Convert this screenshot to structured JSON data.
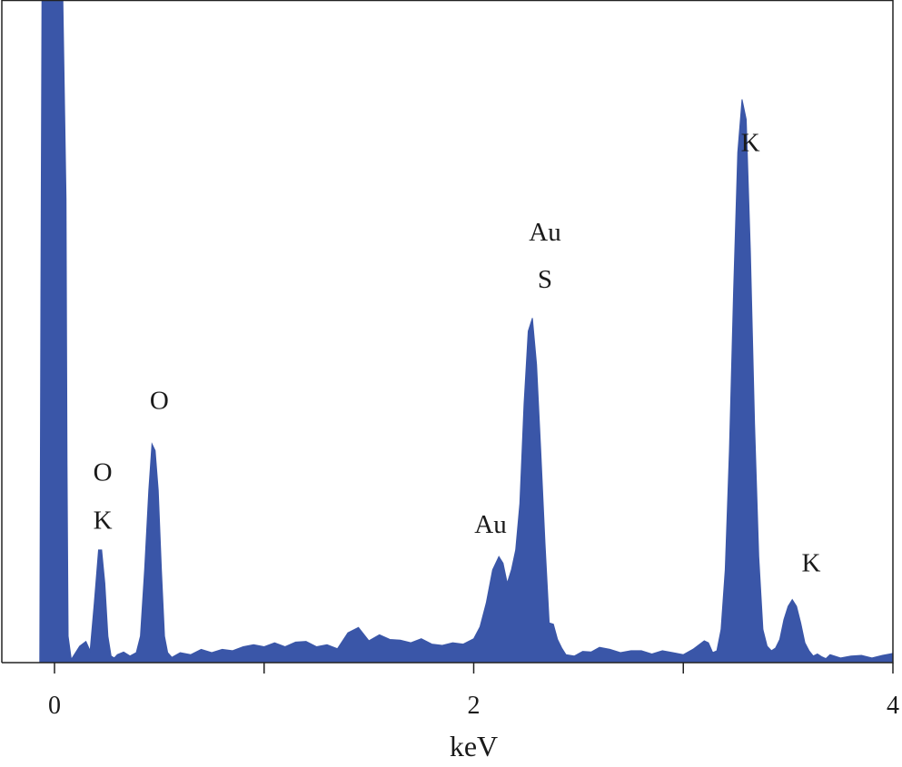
{
  "chart_data": {
    "type": "area",
    "title": "",
    "xlabel": "keV",
    "ylabel": "",
    "xlim": [
      -0.13,
      4.0
    ],
    "ylim": [
      0,
      100
    ],
    "grid": false,
    "legend": "none",
    "fill_color": "#3a56a8",
    "x_ticks_labeled": [
      {
        "value": 0,
        "label": "0"
      },
      {
        "value": 2,
        "label": "2"
      },
      {
        "value": 4,
        "label": "4"
      }
    ],
    "x_ticks_minor": [
      1,
      3
    ],
    "series": [
      {
        "x": [
          -0.07,
          -0.065,
          -0.06,
          -0.055,
          0.04,
          0.055,
          0.06,
          0.065,
          0.08,
          0.12,
          0.15,
          0.17,
          0.19,
          0.21,
          0.225,
          0.24,
          0.255,
          0.27,
          0.285,
          0.3,
          0.33,
          0.36,
          0.39,
          0.41,
          0.43,
          0.45,
          0.465,
          0.48,
          0.495,
          0.51,
          0.525,
          0.54,
          0.56,
          0.6,
          0.65,
          0.7,
          0.75,
          0.8,
          0.85,
          0.9,
          0.95,
          1.0,
          1.05,
          1.1,
          1.15,
          1.2,
          1.25,
          1.3,
          1.35,
          1.4,
          1.45,
          1.5,
          1.55,
          1.6,
          1.65,
          1.7,
          1.75,
          1.8,
          1.85,
          1.9,
          1.95,
          2.0,
          2.03,
          2.06,
          2.09,
          2.12,
          2.14,
          2.16,
          2.18,
          2.2,
          2.22,
          2.24,
          2.26,
          2.28,
          2.3,
          2.32,
          2.34,
          2.36,
          2.38,
          2.4,
          2.42,
          2.44,
          2.48,
          2.52,
          2.56,
          2.6,
          2.65,
          2.7,
          2.75,
          2.8,
          2.85,
          2.9,
          2.95,
          3.0,
          3.05,
          3.1,
          3.12,
          3.14,
          3.16,
          3.18,
          3.2,
          3.22,
          3.24,
          3.26,
          3.28,
          3.3,
          3.32,
          3.34,
          3.36,
          3.38,
          3.4,
          3.42,
          3.44,
          3.46,
          3.48,
          3.5,
          3.52,
          3.54,
          3.56,
          3.58,
          3.6,
          3.62,
          3.64,
          3.66,
          3.68,
          3.7,
          3.75,
          3.8,
          3.85,
          3.9,
          3.95,
          4.0
        ],
        "y": [
          0,
          55,
          100,
          100,
          100,
          70,
          30,
          4,
          0.5,
          2.5,
          3.2,
          1.8,
          9,
          17,
          17,
          12,
          4,
          1,
          0.7,
          1.2,
          1.6,
          1,
          1.5,
          4,
          14,
          26,
          33,
          32,
          26,
          14,
          4,
          1.5,
          0.8,
          1.5,
          1.2,
          2,
          1.5,
          2,
          1.8,
          2.4,
          2.7,
          2.4,
          3,
          2.4,
          3.1,
          3.2,
          2.4,
          2.7,
          2.1,
          4.5,
          5.3,
          3.3,
          4.2,
          3.5,
          3.4,
          3,
          3.6,
          2.8,
          2.6,
          3,
          2.8,
          3.6,
          5.4,
          9,
          14,
          16,
          15,
          12,
          14,
          17,
          24,
          39,
          50,
          52,
          45,
          32,
          18,
          6,
          5.8,
          3.5,
          2.2,
          1.2,
          1,
          1.7,
          1.6,
          2.3,
          2,
          1.5,
          1.8,
          1.8,
          1.3,
          1.8,
          1.5,
          1.2,
          2.1,
          3.3,
          3,
          1.5,
          1.8,
          5,
          14,
          32,
          56,
          77,
          85,
          82,
          62,
          36,
          16,
          5,
          2.5,
          1.8,
          2.2,
          3.5,
          6.5,
          8.5,
          9.5,
          8.5,
          6,
          3,
          1.8,
          1,
          1.3,
          0.9,
          0.6,
          1.2,
          0.7,
          1,
          1.1,
          0.7,
          1.1,
          1.4
        ]
      }
    ],
    "annotations": [
      {
        "text": "O",
        "x": 0.23,
        "level": 27.5
      },
      {
        "text": "K",
        "x": 0.23,
        "level": 20.2
      },
      {
        "text": "O",
        "x": 0.5,
        "level": 38.3
      },
      {
        "text": "Au",
        "x": 2.08,
        "level": 19.6
      },
      {
        "text": "Au",
        "x": 2.34,
        "level": 63.7
      },
      {
        "text": "S",
        "x": 2.34,
        "level": 56.6
      },
      {
        "text": "K",
        "x": 3.32,
        "level": 77.2
      },
      {
        "text": "K",
        "x": 3.61,
        "level": 13.8
      }
    ]
  }
}
